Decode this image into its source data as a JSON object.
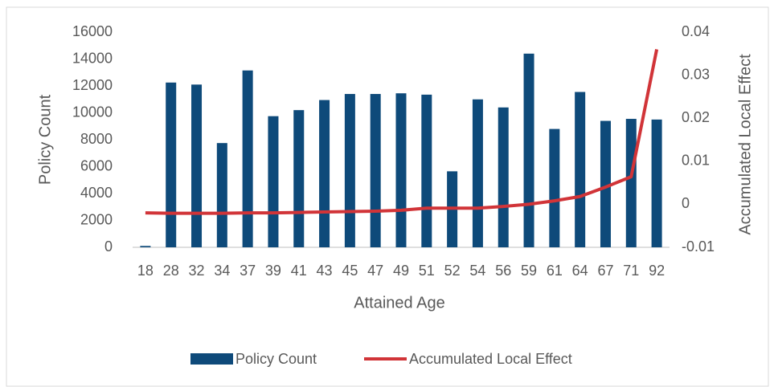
{
  "chart_data": {
    "type": "bar",
    "x_label": "Attained Age",
    "y_label": "Policy Count",
    "y2_label": "Accumulated Local Effect",
    "categories": [
      "18",
      "28",
      "32",
      "34",
      "37",
      "39",
      "41",
      "43",
      "45",
      "47",
      "49",
      "51",
      "52",
      "54",
      "56",
      "59",
      "61",
      "64",
      "67",
      "71",
      "92"
    ],
    "series": [
      {
        "name": "Policy Count",
        "type": "bar",
        "color": "#0e4a7a",
        "values": [
          100,
          12250,
          12100,
          7750,
          13150,
          9750,
          10200,
          10950,
          11400,
          11400,
          11450,
          11350,
          5650,
          11000,
          10400,
          14400,
          8800,
          11550,
          9400,
          9550,
          9500
        ]
      },
      {
        "name": "Accumulated Local Effect",
        "type": "line",
        "axis": "y2",
        "color": "#d13438",
        "values": [
          -0.002,
          -0.0021,
          -0.0021,
          -0.0021,
          -0.002,
          -0.002,
          -0.0019,
          -0.0018,
          -0.0017,
          -0.0016,
          -0.0014,
          -0.0009,
          -0.0009,
          -0.0009,
          -0.0005,
          0.0,
          0.0008,
          0.0018,
          0.004,
          0.0064,
          0.036
        ]
      }
    ],
    "ylim": [
      0,
      16000
    ],
    "yticks": [
      0,
      2000,
      4000,
      6000,
      8000,
      10000,
      12000,
      14000,
      16000
    ],
    "y2lim": [
      -0.01,
      0.04
    ],
    "y2ticks": [
      -0.01,
      0,
      0.01,
      0.02,
      0.03,
      0.04
    ],
    "legend": "bottom"
  }
}
